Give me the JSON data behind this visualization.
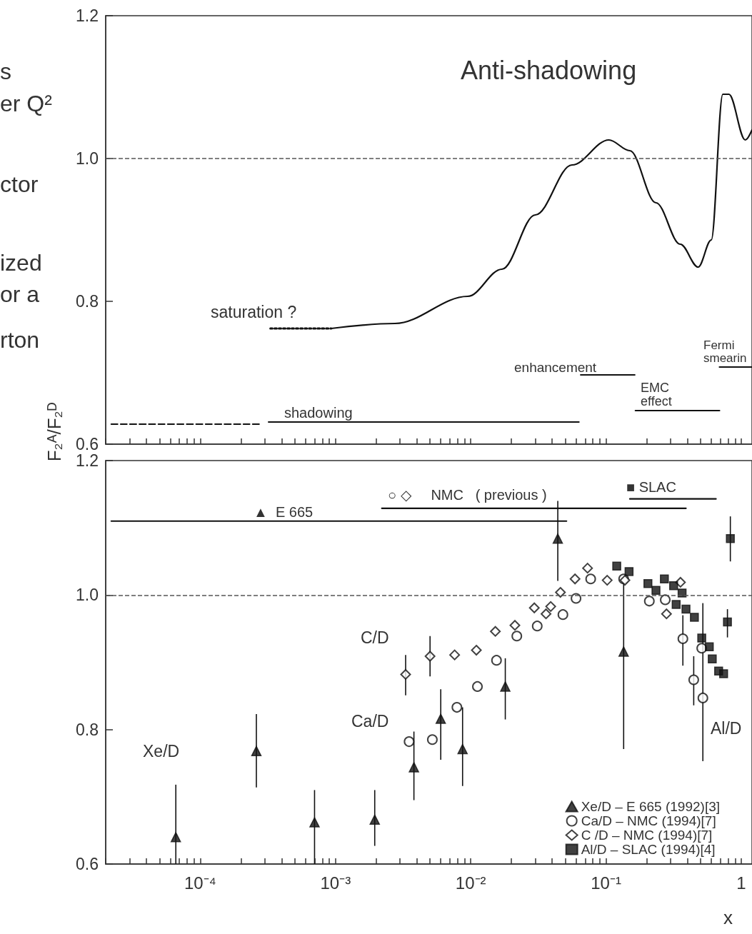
{
  "chart_data": [
    {
      "type": "line",
      "xlim": [
        2e-05,
        1.2
      ],
      "ylim": [
        0.6,
        1.2
      ],
      "log": "x",
      "tick_labels": "y",
      "grid": false,
      "xticks": [
        {
          "value": 2e-05,
          "label": null
        },
        {
          "value": 3e-05,
          "label": null
        },
        {
          "value": 4e-05,
          "label": null
        },
        {
          "value": 5e-05,
          "label": null
        },
        {
          "value": 6e-05,
          "label": null
        },
        {
          "value": 7e-05,
          "label": null
        },
        {
          "value": 8e-05,
          "label": null
        },
        {
          "value": 9e-05,
          "label": null
        },
        {
          "value": 0.0001,
          "label": null
        },
        {
          "value": 0.0002,
          "label": null
        },
        {
          "value": 0.0003,
          "label": null
        },
        {
          "value": 0.0004,
          "label": null
        },
        {
          "value": 0.0005,
          "label": null
        },
        {
          "value": 0.0006,
          "label": null
        },
        {
          "value": 0.0007,
          "label": null
        },
        {
          "value": 0.0008,
          "label": null
        },
        {
          "value": 0.0009,
          "label": null
        },
        {
          "value": 0.001,
          "label": null
        },
        {
          "value": 0.002,
          "label": null
        },
        {
          "value": 0.003,
          "label": null
        },
        {
          "value": 0.004,
          "label": null
        },
        {
          "value": 0.005,
          "label": null
        },
        {
          "value": 0.006,
          "label": null
        },
        {
          "value": 0.007,
          "label": null
        },
        {
          "value": 0.008,
          "label": null
        },
        {
          "value": 0.009,
          "label": null
        },
        {
          "value": 0.01,
          "label": null
        },
        {
          "value": 0.02,
          "label": null
        },
        {
          "value": 0.03,
          "label": null
        },
        {
          "value": 0.04,
          "label": null
        },
        {
          "value": 0.05,
          "label": null
        },
        {
          "value": 0.06,
          "label": null
        },
        {
          "value": 0.07,
          "label": null
        },
        {
          "value": 0.08,
          "label": null
        },
        {
          "value": 0.09,
          "label": null
        },
        {
          "value": 0.1,
          "label": null
        },
        {
          "value": 0.2,
          "label": null
        },
        {
          "value": 0.3,
          "label": null
        },
        {
          "value": 0.4,
          "label": null
        },
        {
          "value": 0.5,
          "label": null
        },
        {
          "value": 0.6,
          "label": null
        },
        {
          "value": 0.7,
          "label": null
        },
        {
          "value": 0.8,
          "label": null
        },
        {
          "value": 0.9,
          "label": null
        },
        {
          "value": 1,
          "label": null
        }
      ],
      "yticks": [
        0.6,
        0.8,
        {
          "value": 1,
          "label": "1.0"
        },
        1.2
      ],
      "ref_lines": [
        {
          "axis": "y",
          "value": 1,
          "line_style": "dashed",
          "color": "#555555"
        }
      ],
      "annotations": [
        "s",
        "er Q²",
        "ctor",
        "ized",
        "or a",
        "rton",
        "Anti-shadowing",
        "saturation ?",
        "shadowing",
        "enhancement",
        "EMC\neffect",
        "Fermi\nsmearin"
      ],
      "series": [
        {
          "color": "#111111",
          "line_style": "dotted",
          "x": [
            0.00033,
            0.00093
          ],
          "values": [
            0.762,
            0.762
          ]
        },
        {
          "color": "#111111",
          "line_style": "solid",
          "x": [
            0.00093,
            0.00275,
            0.0095,
            0.017,
            0.03,
            0.056,
            0.105,
            0.15,
            0.234,
            0.354,
            0.48,
            0.6,
            0.73,
            0.81,
            1.07,
            1.2
          ],
          "values": [
            0.762,
            0.769,
            0.807,
            0.845,
            0.921,
            0.991,
            1.026,
            1.011,
            0.938,
            0.88,
            0.848,
            0.886,
            1.09,
            1.09,
            1.026,
            1.04
          ]
        },
        {
          "color": "#111111",
          "line_style": "dashed",
          "x": [
            2.2e-05,
            0.000275
          ],
          "values": [
            0.628,
            0.628
          ]
        },
        {
          "color": "#111111",
          "line_style": "solid",
          "x": [
            0.00032,
            0.063
          ],
          "values": [
            0.631,
            0.631
          ]
        },
        {
          "color": "#111111",
          "line_style": "solid",
          "x": [
            0.065,
            0.163
          ],
          "values": [
            0.697,
            0.697
          ]
        },
        {
          "color": "#111111",
          "line_style": "solid",
          "x": [
            0.165,
            0.69
          ],
          "values": [
            0.647,
            0.647
          ]
        },
        {
          "color": "#111111",
          "line_style": "solid",
          "x": [
            0.69,
            1.2
          ],
          "values": [
            0.708,
            0.708
          ]
        }
      ]
    },
    {
      "type": "scatter",
      "xlim": [
        2e-05,
        1.2
      ],
      "ylim": [
        0.6,
        1.2
      ],
      "log": "x",
      "grid": false,
      "xlabel": "x",
      "ylabel": "F₂ᴬ/F₂ᴰ",
      "legend": "bottom right",
      "xticks": [
        {
          "value": 2e-05,
          "label": null
        },
        {
          "value": 3e-05,
          "label": null
        },
        {
          "value": 4e-05,
          "label": null
        },
        {
          "value": 5e-05,
          "label": null
        },
        {
          "value": 6e-05,
          "label": null
        },
        {
          "value": 7e-05,
          "label": null
        },
        {
          "value": 8e-05,
          "label": null
        },
        {
          "value": 9e-05,
          "label": null
        },
        {
          "value": 0.0001,
          "label": "10⁻⁴"
        },
        {
          "value": 0.0002,
          "label": null
        },
        {
          "value": 0.0003,
          "label": null
        },
        {
          "value": 0.0004,
          "label": null
        },
        {
          "value": 0.0005,
          "label": null
        },
        {
          "value": 0.0006,
          "label": null
        },
        {
          "value": 0.0007,
          "label": null
        },
        {
          "value": 0.0008,
          "label": null
        },
        {
          "value": 0.0009,
          "label": null
        },
        {
          "value": 0.001,
          "label": "10⁻³"
        },
        {
          "value": 0.002,
          "label": null
        },
        {
          "value": 0.003,
          "label": null
        },
        {
          "value": 0.004,
          "label": null
        },
        {
          "value": 0.005,
          "label": null
        },
        {
          "value": 0.006,
          "label": null
        },
        {
          "value": 0.007,
          "label": null
        },
        {
          "value": 0.008,
          "label": null
        },
        {
          "value": 0.009,
          "label": null
        },
        {
          "value": 0.01,
          "label": "10⁻²"
        },
        {
          "value": 0.02,
          "label": null
        },
        {
          "value": 0.03,
          "label": null
        },
        {
          "value": 0.04,
          "label": null
        },
        {
          "value": 0.05,
          "label": null
        },
        {
          "value": 0.06,
          "label": null
        },
        {
          "value": 0.07,
          "label": null
        },
        {
          "value": 0.08,
          "label": null
        },
        {
          "value": 0.09,
          "label": null
        },
        {
          "value": 0.1,
          "label": "10⁻¹"
        },
        {
          "value": 0.2,
          "label": null
        },
        {
          "value": 0.3,
          "label": null
        },
        {
          "value": 0.4,
          "label": null
        },
        {
          "value": 0.5,
          "label": null
        },
        {
          "value": 0.6,
          "label": null
        },
        {
          "value": 0.7,
          "label": null
        },
        {
          "value": 0.8,
          "label": null
        },
        {
          "value": 0.9,
          "label": null
        },
        {
          "value": 1,
          "label": "1"
        }
      ],
      "yticks": [
        0.6,
        0.8,
        {
          "value": 1,
          "label": "1.0"
        },
        1.2
      ],
      "ref_lines": [
        {
          "axis": "y",
          "value": 1,
          "line_style": "dashed",
          "color": "#555555"
        }
      ],
      "annotations": [
        "Xe/D",
        "C/D",
        "Ca/D",
        "Al/D",
        "▲  E 665",
        "○ ◇     NMC   ( previous )",
        "■ SLAC"
      ],
      "series": [
        {
          "name": "Xe/D – E 665 (1992)[3]",
          "marker": "triangle",
          "color": "#111111",
          "x": [
            6.6e-05,
            0.00026,
            0.0007,
            0.00195,
            0.0038,
            0.006,
            0.0087,
            0.018,
            0.044,
            0.135
          ],
          "values": [
            0.64,
            0.768,
            0.662,
            0.666,
            0.744,
            0.816,
            0.771,
            0.864,
            1.084,
            0.916
          ],
          "errors": [
            [
              0.6,
              0.718
            ],
            [
              0.714,
              0.823
            ],
            [
              0.6,
              0.71
            ],
            [
              0.627,
              0.71
            ],
            [
              0.695,
              0.797
            ],
            [
              0.755,
              0.86
            ],
            [
              0.716,
              0.833
            ],
            [
              0.815,
              0.906
            ],
            [
              1.021,
              1.14
            ],
            [
              0.771,
              1.021
            ]
          ]
        },
        {
          "name": "Ca/D – NMC (1994)[7]",
          "marker": "circle",
          "color": "#111111",
          "x": [
            0.0035,
            0.0052,
            0.0079,
            0.0112,
            0.0155,
            0.0219,
            0.031,
            0.048,
            0.06,
            0.077,
            0.135,
            0.209,
            0.274,
            0.37,
            0.445,
            0.52,
            0.51
          ],
          "values": [
            0.782,
            0.785,
            0.833,
            0.864,
            0.903,
            0.939,
            0.954,
            0.971,
            0.995,
            1.024,
            1.024,
            0.991,
            0.993,
            0.935,
            0.874,
            0.847,
            0.921
          ],
          "errors": [
            null,
            null,
            null,
            null,
            null,
            null,
            null,
            null,
            null,
            null,
            null,
            null,
            null,
            [
              0.895,
              0.97
            ],
            [
              0.836,
              0.909
            ],
            [
              0.753,
              0.988
            ],
            null
          ]
        },
        {
          "name": "C /D – NMC (1994)[7]",
          "marker": "diamond",
          "color": "#111111",
          "x": [
            0.0033,
            0.005,
            0.0076,
            0.011,
            0.0152,
            0.0212,
            0.0295,
            0.036,
            0.039,
            0.046,
            0.059,
            0.073,
            0.102,
            0.138,
            0.28,
            0.355
          ],
          "values": [
            0.882,
            0.909,
            0.911,
            0.918,
            0.946,
            0.955,
            0.981,
            0.972,
            0.983,
            1.004,
            1.024,
            1.04,
            1.022,
            1.022,
            0.972,
            1.019
          ],
          "errors": [
            [
              0.851,
              0.911
            ],
            [
              0.879,
              0.939
            ],
            null,
            null,
            null,
            null,
            null,
            null,
            null,
            null,
            null,
            null,
            null,
            null,
            null,
            null
          ]
        },
        {
          "name": "Al/D – SLAC (1994)[4]",
          "marker": "square",
          "color": "#111111",
          "x": [
            0.12,
            0.148,
            0.204,
            0.234,
            0.27,
            0.316,
            0.365,
            0.33,
            0.39,
            0.45,
            0.51,
            0.58,
            0.61,
            0.68,
            0.74,
            0.79,
            0.83
          ],
          "values": [
            1.043,
            1.035,
            1.017,
            1.007,
            1.024,
            1.014,
            1.003,
            0.986,
            0.979,
            0.967,
            0.936,
            0.923,
            0.905,
            0.887,
            0.883,
            0.96,
            1.084
          ],
          "errors": [
            null,
            null,
            null,
            null,
            null,
            null,
            null,
            null,
            null,
            null,
            null,
            null,
            null,
            null,
            null,
            [
              0.937,
              0.979
            ],
            [
              1.05,
              1.117
            ]
          ]
        },
        {
          "type": "line",
          "color": "#111111",
          "line_style": "solid",
          "x": [
            2.2e-05,
            0.051
          ],
          "values": [
            1.11,
            1.11
          ]
        },
        {
          "type": "line",
          "color": "#111111",
          "line_style": "solid",
          "x": [
            0.0022,
            0.39
          ],
          "values": [
            1.129,
            1.129
          ]
        },
        {
          "type": "line",
          "color": "#111111",
          "line_style": "solid",
          "x": [
            0.15,
            0.65
          ],
          "values": [
            1.143,
            1.143
          ]
        }
      ]
    }
  ]
}
